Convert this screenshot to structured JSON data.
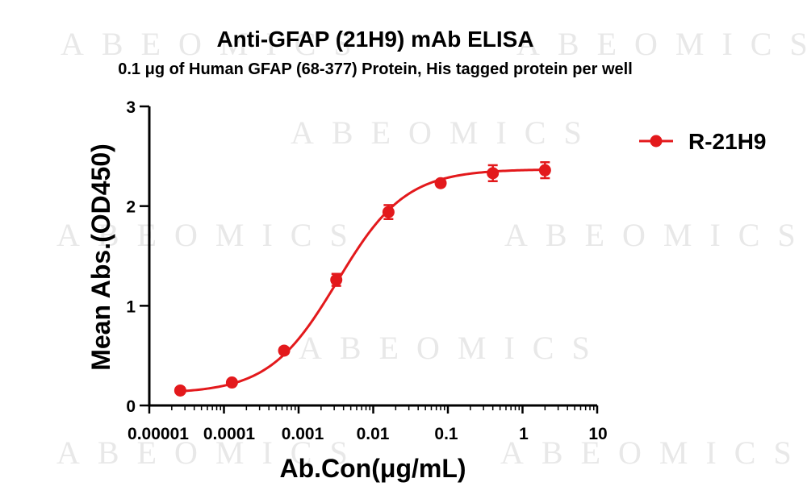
{
  "chart_data": {
    "type": "line",
    "title": "Anti-GFAP (21H9) mAb ELISA",
    "subtitle": "0.1  μg of Human GFAP (68-377) Protein, His  tagged protein per well",
    "xlabel": "Ab.Con(μg/mL)",
    "ylabel": "Mean Abs.(OD450)",
    "x_scale": "log",
    "xlim": [
      1e-05,
      10
    ],
    "ylim": [
      0,
      3
    ],
    "x_ticks": [
      1e-05,
      0.0001,
      0.001,
      0.01,
      0.1,
      1,
      10
    ],
    "x_tick_labels": [
      "0.00001",
      "0.0001",
      "0.001",
      "0.01",
      "0.1",
      "1",
      "10"
    ],
    "y_ticks": [
      0,
      1,
      2,
      3
    ],
    "y_tick_labels": [
      "0",
      "1",
      "2",
      "3"
    ],
    "legend_position": "top-right",
    "grid": false,
    "series": [
      {
        "name": "R-21H9",
        "color": "#e3191c",
        "marker": "circle",
        "fit": "sigmoidal",
        "x": [
          2.6e-05,
          0.000128,
          0.00064,
          0.0032,
          0.016,
          0.08,
          0.4,
          2
        ],
        "y": [
          0.15,
          0.23,
          0.55,
          1.26,
          1.94,
          2.23,
          2.33,
          2.36
        ],
        "error": [
          0.02,
          0.02,
          0.03,
          0.06,
          0.07,
          0.03,
          0.08,
          0.08
        ]
      }
    ],
    "watermark": "ABEOMICS"
  }
}
